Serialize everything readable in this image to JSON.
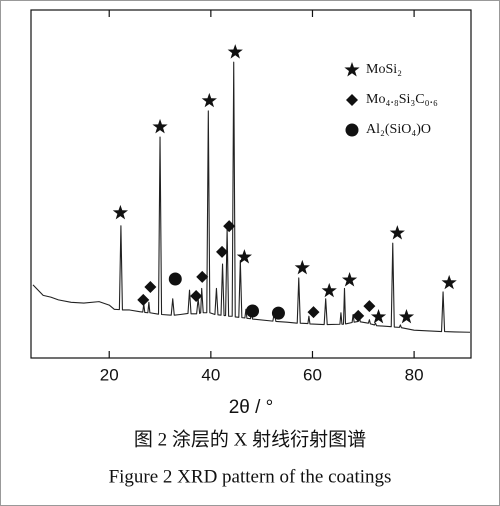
{
  "chart_data": {
    "type": "line",
    "xlabel": "2θ / °",
    "caption_cn": "图 2  涂层的 X 射线衍射图谱",
    "caption_en": "Figure 2 XRD pattern of the coatings",
    "xlim": [
      5,
      91
    ],
    "ylim": [
      0,
      100
    ],
    "xticks": [
      20,
      40,
      60,
      80
    ],
    "color": "#222222",
    "x": [
      5,
      6,
      7,
      8.5,
      10,
      12.5,
      15,
      18,
      20,
      21,
      22,
      22.3,
      22.6,
      24,
      26,
      26.6,
      26.8,
      27,
      27.6,
      27.8,
      28,
      29.7,
      30,
      30.3,
      32.2,
      32.5,
      32.8,
      34,
      35.5,
      35.8,
      36.1,
      37.2,
      37.5,
      37.8,
      38,
      38.2,
      38.5,
      39.2,
      39.5,
      39.8,
      40.8,
      41.1,
      41.4,
      42,
      42.3,
      42.6,
      42.9,
      43.2,
      43.5,
      44.2,
      44.5,
      44.8,
      45.5,
      45.8,
      46.1,
      46.7,
      46.9,
      47.1,
      47.8,
      48,
      48.2,
      52.2,
      52.5,
      52.8,
      55,
      57,
      57.3,
      57.6,
      59.1,
      59.3,
      59.5,
      62.3,
      62.6,
      62.9,
      65.4,
      65.6,
      65.8,
      66.1,
      66.3,
      66.5,
      67.8,
      68,
      68.2,
      69,
      69.2,
      69.4,
      71,
      71.2,
      71.4,
      72.2,
      72.4,
      72.6,
      75.5,
      75.8,
      76.1,
      77.1,
      77.3,
      77.5,
      80,
      85.4,
      85.7,
      86,
      88,
      91
    ],
    "values": [
      21,
      19.5,
      18,
      17.5,
      16.7,
      16,
      15.8,
      16.2,
      15.2,
      14,
      13.9,
      38,
      13.8,
      13.8,
      13.3,
      13.2,
      15.5,
      13.1,
      13,
      16,
      13,
      12.6,
      63.5,
      12.5,
      12.3,
      17,
      12.3,
      12.5,
      12.8,
      19.5,
      12.7,
      12.7,
      17,
      12.8,
      13,
      20,
      13,
      13,
      71,
      13,
      12.5,
      20,
      12.4,
      12.3,
      27,
      12.2,
      12.2,
      37,
      12,
      12,
      85,
      11.8,
      11.7,
      28,
      11.6,
      11.5,
      14,
      11.4,
      11.3,
      14,
      11.2,
      10.6,
      13,
      10.5,
      10.3,
      10,
      23,
      10,
      9.9,
      12,
      9.8,
      9.6,
      17,
      9.6,
      9.7,
      13,
      9.7,
      9.7,
      20,
      9.8,
      10.2,
      12.5,
      10.3,
      10.5,
      13,
      10.4,
      10,
      11,
      9.8,
      9.5,
      10,
      9.3,
      9,
      33,
      8.9,
      8.8,
      9.5,
      8.7,
      8,
      7.6,
      19,
      7.6,
      7.5,
      7.4
    ],
    "phases": [
      {
        "name": "MoSi₂",
        "symbol": "star",
        "x": [
          22.2,
          30.0,
          39.7,
          44.8,
          46.6,
          58.0,
          63.3,
          67.3,
          73.0,
          76.7,
          78.5,
          86.9
        ],
        "y": [
          41.7,
          66.4,
          73.9,
          87.9,
          29,
          25.9,
          19.3,
          22.4,
          11.8,
          35.9,
          11.8,
          21.6
        ]
      },
      {
        "name": "Mo₄.₈Si₃C₀.₆",
        "symbol": "diamond",
        "x": [
          26.7,
          28.1,
          37.1,
          38.3,
          42.2,
          43.6,
          60.2,
          69.0,
          71.2
        ],
        "y": [
          16.7,
          20.4,
          17.8,
          23.3,
          30.5,
          37.9,
          13.2,
          12.1,
          14.9
        ]
      },
      {
        "name": "Al₂(SiO₄)O",
        "symbol": "circle",
        "x": [
          33.0,
          48.2,
          53.3
        ],
        "y": [
          22.7,
          13.5,
          12.9
        ]
      }
    ]
  }
}
